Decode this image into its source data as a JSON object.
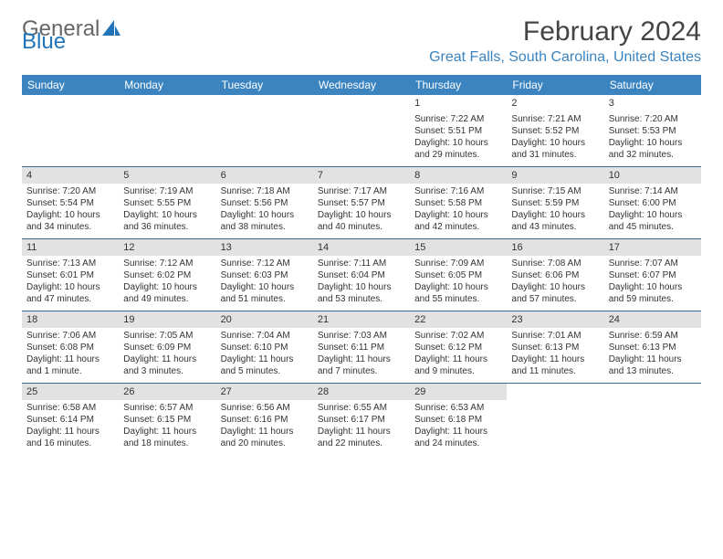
{
  "logo": {
    "text_general": "General",
    "text_blue": "Blue"
  },
  "title": "February 2024",
  "subtitle": "Great Falls, South Carolina, United States",
  "colors": {
    "header_bg": "#3b84c0",
    "row_divider": "#3b6a94",
    "daynum_bg": "#e2e2e2",
    "logo_blue": "#2174b8"
  },
  "day_headers": [
    "Sunday",
    "Monday",
    "Tuesday",
    "Wednesday",
    "Thursday",
    "Friday",
    "Saturday"
  ],
  "weeks": [
    [
      {
        "empty": true
      },
      {
        "empty": true
      },
      {
        "empty": true
      },
      {
        "empty": true
      },
      {
        "num": "1",
        "sunrise": "Sunrise: 7:22 AM",
        "sunset": "Sunset: 5:51 PM",
        "daylight": "Daylight: 10 hours and 29 minutes."
      },
      {
        "num": "2",
        "sunrise": "Sunrise: 7:21 AM",
        "sunset": "Sunset: 5:52 PM",
        "daylight": "Daylight: 10 hours and 31 minutes."
      },
      {
        "num": "3",
        "sunrise": "Sunrise: 7:20 AM",
        "sunset": "Sunset: 5:53 PM",
        "daylight": "Daylight: 10 hours and 32 minutes."
      }
    ],
    [
      {
        "num": "4",
        "sunrise": "Sunrise: 7:20 AM",
        "sunset": "Sunset: 5:54 PM",
        "daylight": "Daylight: 10 hours and 34 minutes."
      },
      {
        "num": "5",
        "sunrise": "Sunrise: 7:19 AM",
        "sunset": "Sunset: 5:55 PM",
        "daylight": "Daylight: 10 hours and 36 minutes."
      },
      {
        "num": "6",
        "sunrise": "Sunrise: 7:18 AM",
        "sunset": "Sunset: 5:56 PM",
        "daylight": "Daylight: 10 hours and 38 minutes."
      },
      {
        "num": "7",
        "sunrise": "Sunrise: 7:17 AM",
        "sunset": "Sunset: 5:57 PM",
        "daylight": "Daylight: 10 hours and 40 minutes."
      },
      {
        "num": "8",
        "sunrise": "Sunrise: 7:16 AM",
        "sunset": "Sunset: 5:58 PM",
        "daylight": "Daylight: 10 hours and 42 minutes."
      },
      {
        "num": "9",
        "sunrise": "Sunrise: 7:15 AM",
        "sunset": "Sunset: 5:59 PM",
        "daylight": "Daylight: 10 hours and 43 minutes."
      },
      {
        "num": "10",
        "sunrise": "Sunrise: 7:14 AM",
        "sunset": "Sunset: 6:00 PM",
        "daylight": "Daylight: 10 hours and 45 minutes."
      }
    ],
    [
      {
        "num": "11",
        "sunrise": "Sunrise: 7:13 AM",
        "sunset": "Sunset: 6:01 PM",
        "daylight": "Daylight: 10 hours and 47 minutes."
      },
      {
        "num": "12",
        "sunrise": "Sunrise: 7:12 AM",
        "sunset": "Sunset: 6:02 PM",
        "daylight": "Daylight: 10 hours and 49 minutes."
      },
      {
        "num": "13",
        "sunrise": "Sunrise: 7:12 AM",
        "sunset": "Sunset: 6:03 PM",
        "daylight": "Daylight: 10 hours and 51 minutes."
      },
      {
        "num": "14",
        "sunrise": "Sunrise: 7:11 AM",
        "sunset": "Sunset: 6:04 PM",
        "daylight": "Daylight: 10 hours and 53 minutes."
      },
      {
        "num": "15",
        "sunrise": "Sunrise: 7:09 AM",
        "sunset": "Sunset: 6:05 PM",
        "daylight": "Daylight: 10 hours and 55 minutes."
      },
      {
        "num": "16",
        "sunrise": "Sunrise: 7:08 AM",
        "sunset": "Sunset: 6:06 PM",
        "daylight": "Daylight: 10 hours and 57 minutes."
      },
      {
        "num": "17",
        "sunrise": "Sunrise: 7:07 AM",
        "sunset": "Sunset: 6:07 PM",
        "daylight": "Daylight: 10 hours and 59 minutes."
      }
    ],
    [
      {
        "num": "18",
        "sunrise": "Sunrise: 7:06 AM",
        "sunset": "Sunset: 6:08 PM",
        "daylight": "Daylight: 11 hours and 1 minute."
      },
      {
        "num": "19",
        "sunrise": "Sunrise: 7:05 AM",
        "sunset": "Sunset: 6:09 PM",
        "daylight": "Daylight: 11 hours and 3 minutes."
      },
      {
        "num": "20",
        "sunrise": "Sunrise: 7:04 AM",
        "sunset": "Sunset: 6:10 PM",
        "daylight": "Daylight: 11 hours and 5 minutes."
      },
      {
        "num": "21",
        "sunrise": "Sunrise: 7:03 AM",
        "sunset": "Sunset: 6:11 PM",
        "daylight": "Daylight: 11 hours and 7 minutes."
      },
      {
        "num": "22",
        "sunrise": "Sunrise: 7:02 AM",
        "sunset": "Sunset: 6:12 PM",
        "daylight": "Daylight: 11 hours and 9 minutes."
      },
      {
        "num": "23",
        "sunrise": "Sunrise: 7:01 AM",
        "sunset": "Sunset: 6:13 PM",
        "daylight": "Daylight: 11 hours and 11 minutes."
      },
      {
        "num": "24",
        "sunrise": "Sunrise: 6:59 AM",
        "sunset": "Sunset: 6:13 PM",
        "daylight": "Daylight: 11 hours and 13 minutes."
      }
    ],
    [
      {
        "num": "25",
        "sunrise": "Sunrise: 6:58 AM",
        "sunset": "Sunset: 6:14 PM",
        "daylight": "Daylight: 11 hours and 16 minutes."
      },
      {
        "num": "26",
        "sunrise": "Sunrise: 6:57 AM",
        "sunset": "Sunset: 6:15 PM",
        "daylight": "Daylight: 11 hours and 18 minutes."
      },
      {
        "num": "27",
        "sunrise": "Sunrise: 6:56 AM",
        "sunset": "Sunset: 6:16 PM",
        "daylight": "Daylight: 11 hours and 20 minutes."
      },
      {
        "num": "28",
        "sunrise": "Sunrise: 6:55 AM",
        "sunset": "Sunset: 6:17 PM",
        "daylight": "Daylight: 11 hours and 22 minutes."
      },
      {
        "num": "29",
        "sunrise": "Sunrise: 6:53 AM",
        "sunset": "Sunset: 6:18 PM",
        "daylight": "Daylight: 11 hours and 24 minutes."
      },
      {
        "empty": true
      },
      {
        "empty": true
      }
    ]
  ]
}
